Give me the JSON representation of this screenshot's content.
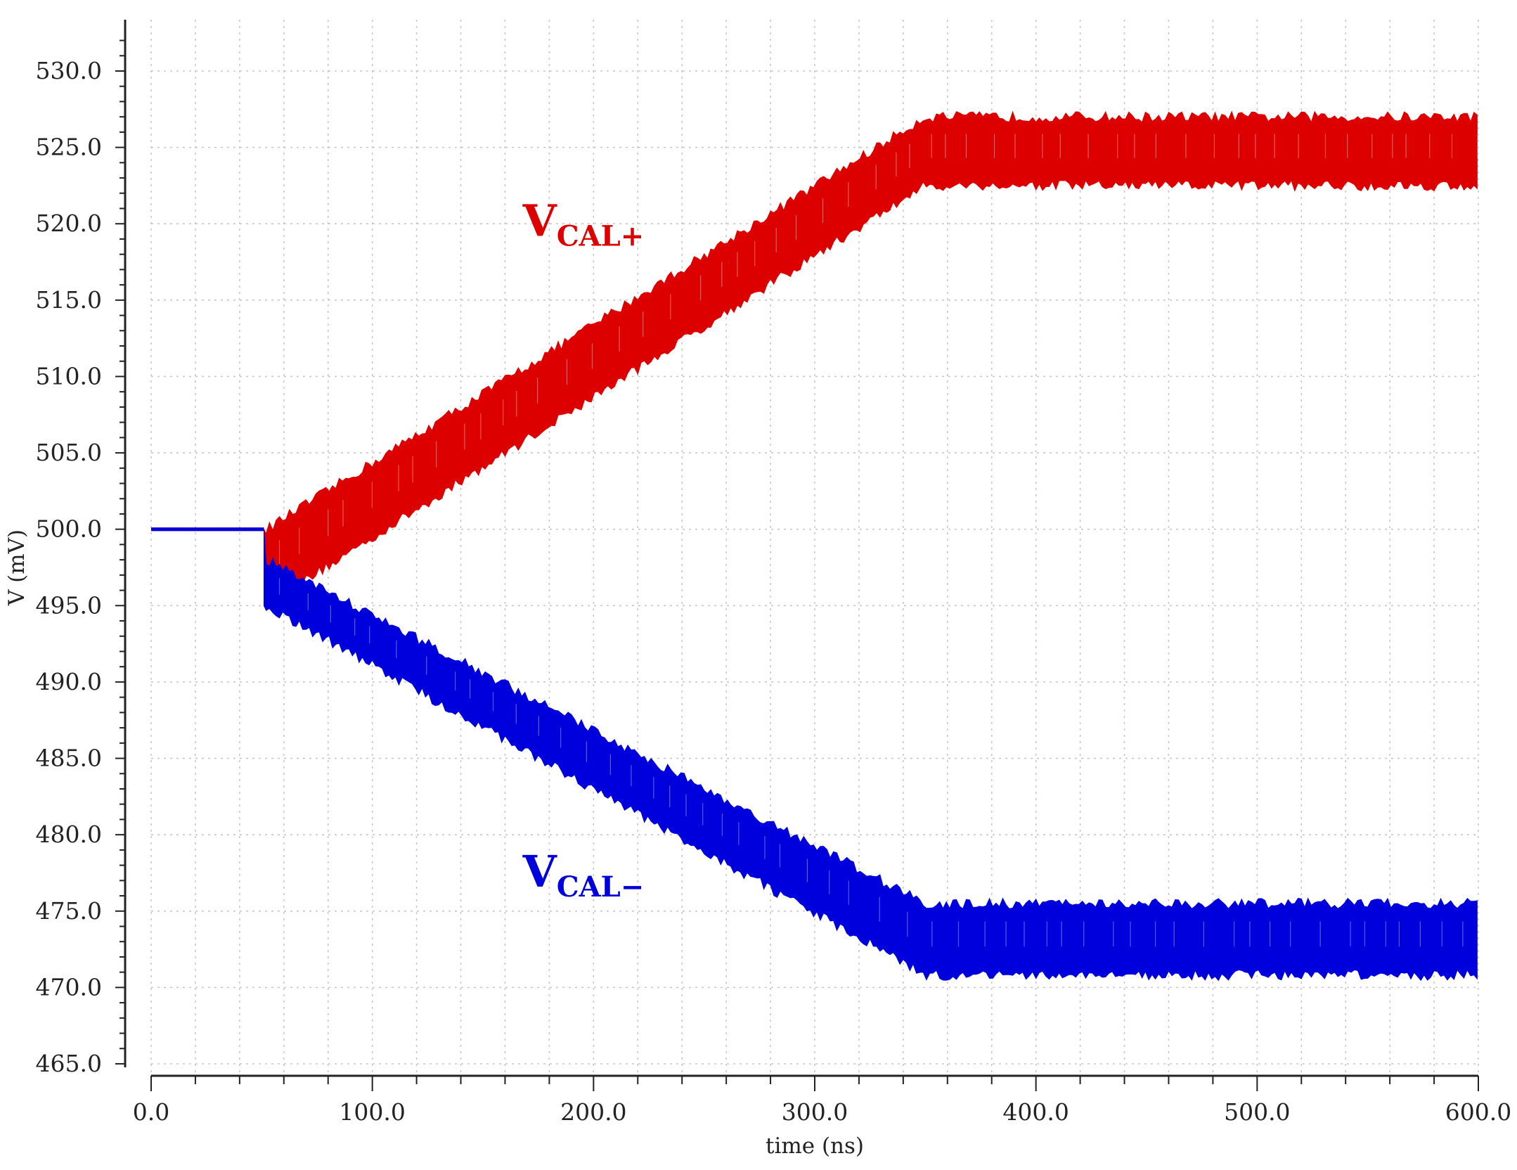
{
  "chart_data": {
    "type": "line",
    "title": "",
    "xlabel": "time (ns)",
    "ylabel": "V (mV)",
    "xlim": [
      0,
      600
    ],
    "ylim": [
      465,
      532
    ],
    "x_ticks": [
      "0.0",
      "100.0",
      "200.0",
      "300.0",
      "400.0",
      "500.0",
      "600.0"
    ],
    "y_ticks": [
      "465.0",
      "470.0",
      "475.0",
      "480.0",
      "485.0",
      "490.0",
      "495.0",
      "500.0",
      "505.0",
      "510.0",
      "515.0",
      "520.0",
      "525.0",
      "530.0"
    ],
    "grid": true,
    "series": [
      {
        "name": "V",
        "subscript": "CAL+",
        "color": "#dd0000",
        "x": [
          0,
          51,
          52,
          350,
          600
        ],
        "y_upper": [
          500.0,
          500.0,
          500.0,
          527.0,
          527.0
        ],
        "y_lower": [
          500.0,
          500.0,
          495.0,
          522.5,
          522.5
        ]
      },
      {
        "name": "V",
        "subscript": "CAL−",
        "color": "#0000dd",
        "x": [
          0,
          51,
          52,
          350,
          600
        ],
        "y_upper": [
          500.0,
          500.0,
          498.0,
          475.5,
          475.5
        ],
        "y_lower": [
          500.0,
          500.0,
          495.0,
          470.8,
          470.8
        ]
      }
    ]
  }
}
